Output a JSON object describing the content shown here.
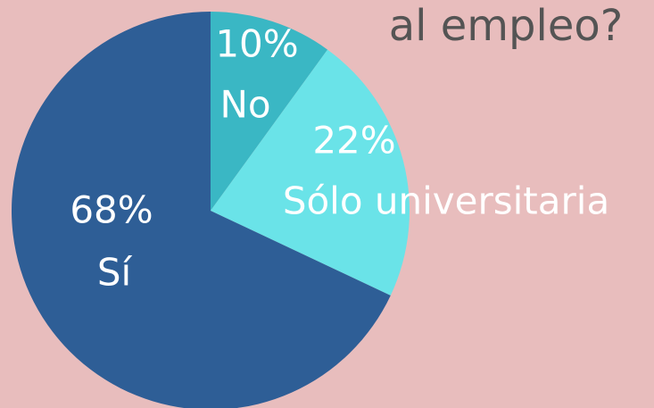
{
  "chart_data": {
    "type": "pie",
    "title": "al empleo?",
    "categories": [
      "No",
      "Sólo universitaria",
      "Sí"
    ],
    "values": [
      10,
      22,
      68
    ],
    "value_labels": [
      "10%",
      "22%",
      "68%"
    ],
    "colors": [
      "#3ab7c4",
      "#6ae3e8",
      "#2e5e96"
    ]
  }
}
